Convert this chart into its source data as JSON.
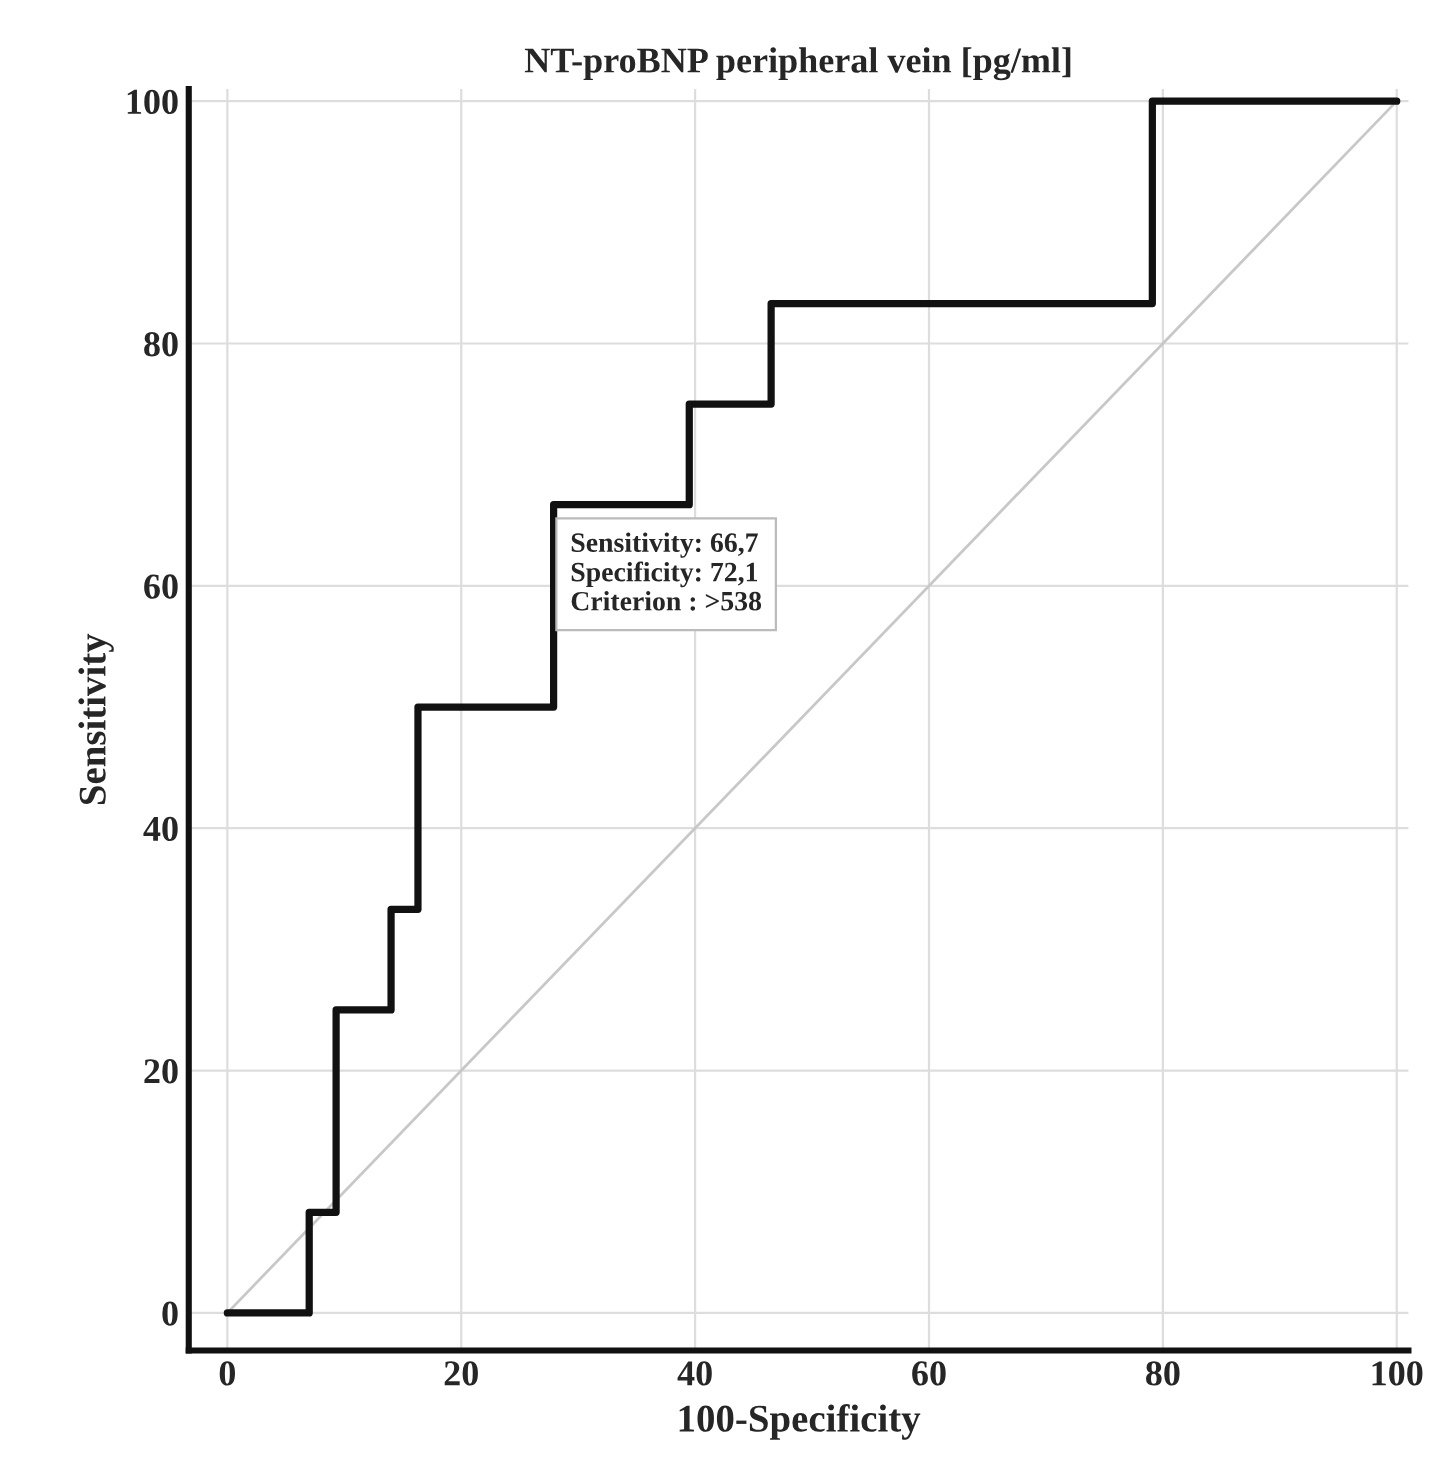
{
  "chart_data": {
    "type": "step",
    "title": "NT-proBNP peripheral vein [pg/ml]",
    "xlabel": "100-Specificity",
    "ylabel": "Sensitivity",
    "series": [
      {
        "color": "#111111",
        "x": [
          0,
          7,
          9.3,
          14,
          16.3,
          27.9,
          39.5,
          46.5,
          79.1,
          100
        ],
        "values": [
          0,
          8.3,
          25,
          33.3,
          50,
          66.7,
          75,
          83.3,
          100,
          100
        ]
      },
      {
        "type": "line",
        "color": "#c8c8c8",
        "x": [
          0,
          100
        ],
        "values": [
          0,
          100
        ]
      }
    ],
    "annotations": [
      {
        "text": "Sensitivity: 66,7\nSpecificity: 72,1\nCriterion : >538",
        "x": 27.9,
        "y": 66.7
      }
    ],
    "xlim": [
      -3.3,
      101
    ],
    "ylim": [
      -3.1,
      101
    ],
    "xticks": [
      0,
      20,
      40,
      60,
      80,
      100
    ],
    "yticks": [
      0,
      20,
      40,
      60,
      80,
      100
    ],
    "grid": true,
    "legend": false,
    "marker": "none"
  }
}
